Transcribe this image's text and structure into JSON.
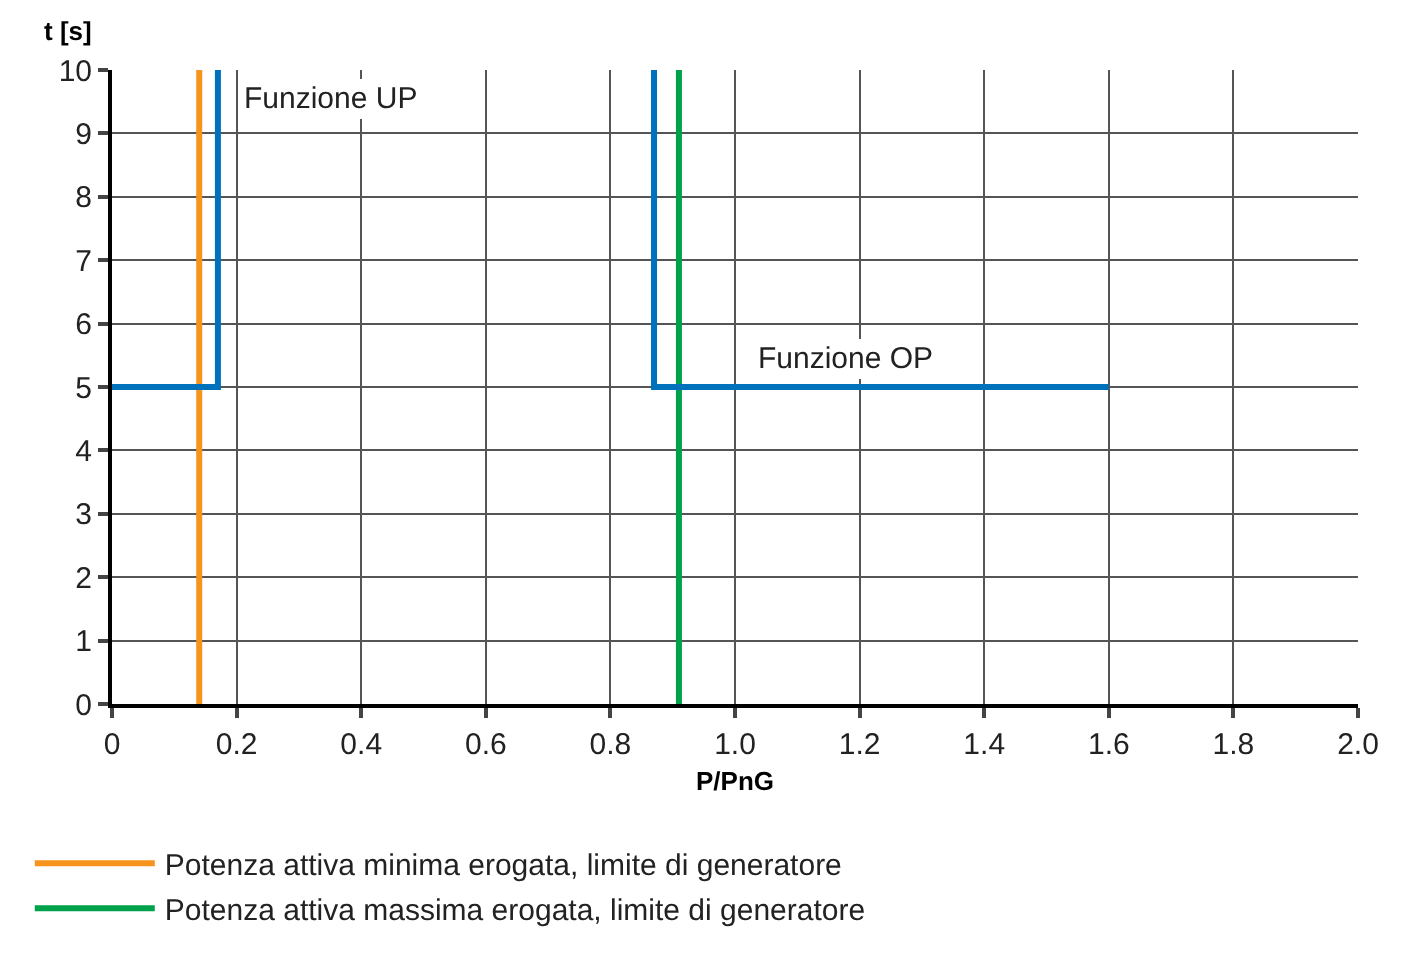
{
  "chart_data": {
    "type": "line",
    "xlabel": "P/PnG",
    "ylabel": "t [s]",
    "xlim": [
      0,
      2
    ],
    "xticks": [
      {
        "value": 0,
        "label": "0"
      },
      0.2,
      0.4,
      0.6,
      0.8,
      {
        "value": 1,
        "label": "1.0"
      },
      1.2,
      1.4,
      1.6,
      1.8,
      {
        "value": 2,
        "label": "2.0"
      }
    ],
    "ylim": [
      0,
      10
    ],
    "yticks": [
      0,
      1,
      2,
      3,
      4,
      5,
      6,
      7,
      8,
      9,
      10
    ],
    "grid": true,
    "legend": "bottom",
    "marker": "none",
    "line_style": "solid",
    "series": [
      {
        "name": "Potenza attiva minima erogata, limite di generatore",
        "color": "#f7941d",
        "x": [
          0.14,
          0.14
        ],
        "values": [
          0,
          10
        ]
      },
      {
        "name": "Potenza attiva massima erogata, limite di generatore",
        "color": "#00a14b",
        "x": [
          0.91,
          0.91
        ],
        "values": [
          0,
          10
        ]
      },
      {
        "color": "#0072bc",
        "x": [
          0,
          0.17,
          0.17
        ],
        "values": [
          5,
          5,
          10
        ]
      },
      {
        "color": "#0072bc",
        "x": [
          1.6,
          0.87,
          0.87
        ],
        "values": [
          5,
          5,
          10
        ]
      }
    ],
    "annotations": [
      "Funzione UP",
      "Funzione OP"
    ]
  }
}
